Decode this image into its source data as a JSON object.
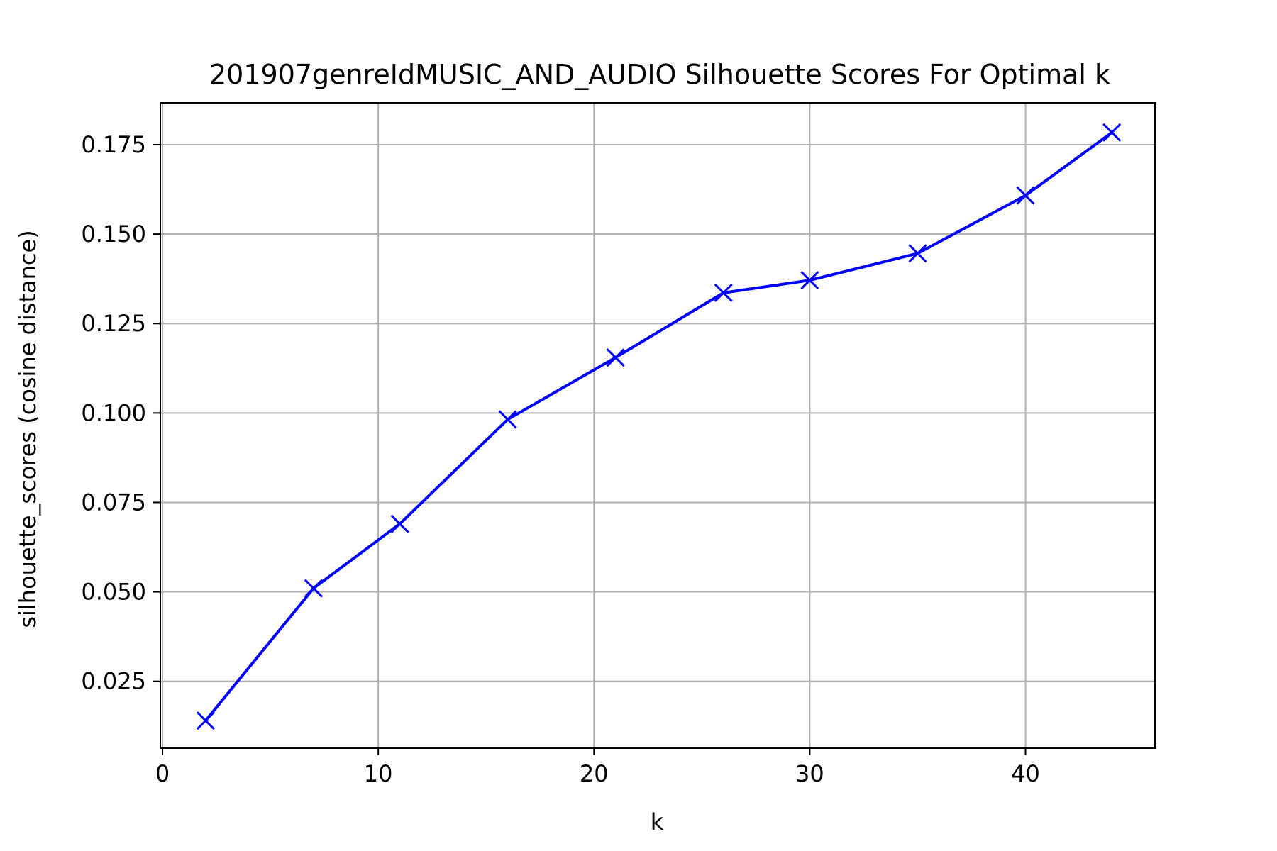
{
  "chart_data": {
    "type": "line",
    "title": "201907genreIdMUSIC_AND_AUDIO Silhouette Scores For Optimal k",
    "xlabel": "k",
    "ylabel": "silhouette_scores (cosine distance)",
    "xlim": [
      -0.1,
      46
    ],
    "ylim": [
      0.0063,
      0.1867
    ],
    "xticks": [
      0,
      10,
      20,
      30,
      40
    ],
    "xtick_labels": [
      "0",
      "10",
      "20",
      "30",
      "40"
    ],
    "yticks": [
      0.025,
      0.05,
      0.075,
      0.1,
      0.125,
      0.15,
      0.175
    ],
    "ytick_labels": [
      "0.025",
      "0.050",
      "0.075",
      "0.100",
      "0.125",
      "0.150",
      "0.175"
    ],
    "grid": true,
    "series": [
      {
        "x": [
          2,
          7,
          11,
          16,
          21,
          26,
          30,
          35,
          40,
          44
        ],
        "y": [
          0.014,
          0.051,
          0.069,
          0.0982,
          0.1155,
          0.1336,
          0.1371,
          0.1446,
          0.1608,
          0.1784
        ],
        "color": "#0000ff",
        "marker": "x"
      }
    ]
  }
}
